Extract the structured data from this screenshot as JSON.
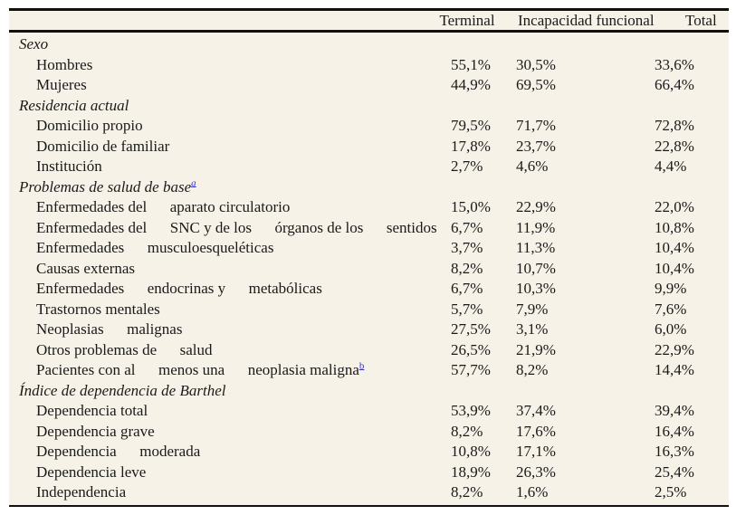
{
  "colors": {
    "table_background": "#f6f2e7",
    "page_background": "#ffffff",
    "text": "#1a1a1a",
    "rule": "#111111",
    "footnote_link": "#3333cc"
  },
  "table": {
    "headers": {
      "terminal": "Terminal",
      "incapacidad": "Incapacidad funcional",
      "total": "Total"
    },
    "rows": [
      {
        "type": "section",
        "label": "Sexo"
      },
      {
        "type": "data",
        "label": "Hombres",
        "terminal": "55,1%",
        "incapacidad": "30,5%",
        "total": "33,6%"
      },
      {
        "type": "data",
        "label": "Mujeres",
        "terminal": "44,9%",
        "incapacidad": "69,5%",
        "total": "66,4%"
      },
      {
        "type": "section",
        "label": "Residencia actual"
      },
      {
        "type": "data",
        "label": "Domicilio propio",
        "terminal": "79,5%",
        "incapacidad": "71,7%",
        "total": "72,8%"
      },
      {
        "type": "data",
        "label": "Domicilio de familiar",
        "terminal": "17,8%",
        "incapacidad": "23,7%",
        "total": "22,8%"
      },
      {
        "type": "data",
        "label": "Institución",
        "terminal": "2,7%",
        "incapacidad": "4,6%",
        "total": "4,4%"
      },
      {
        "type": "section",
        "label": "Problemas de salud de base",
        "sup": "a"
      },
      {
        "type": "data",
        "label": "Enfermedades del      aparato circulatorio",
        "terminal": "15,0%",
        "incapacidad": "22,9%",
        "total": "22,0%"
      },
      {
        "type": "data",
        "label": "Enfermedades del      SNC y de los      órganos de los      sentidos",
        "terminal": "6,7%",
        "incapacidad": "11,9%",
        "total": "10,8%"
      },
      {
        "type": "data",
        "label": "Enfermedades      musculoesqueléticas",
        "terminal": "3,7%",
        "incapacidad": "11,3%",
        "total": "10,4%"
      },
      {
        "type": "data",
        "label": "Causas externas",
        "terminal": "8,2%",
        "incapacidad": "10,7%",
        "total": "10,4%"
      },
      {
        "type": "data",
        "label": "Enfermedades      endocrinas y      metabólicas",
        "terminal": "6,7%",
        "incapacidad": "10,3%",
        "total": "9,9%"
      },
      {
        "type": "data",
        "label": "Trastornos mentales",
        "terminal": "5,7%",
        "incapacidad": "7,9%",
        "total": "7,6%"
      },
      {
        "type": "data",
        "label": "Neoplasias      malignas",
        "terminal": "27,5%",
        "incapacidad": "3,1%",
        "total": "6,0%"
      },
      {
        "type": "data",
        "label": "Otros problemas de      salud",
        "terminal": "26,5%",
        "incapacidad": "21,9%",
        "total": "22,9%"
      },
      {
        "type": "data",
        "label": "Pacientes con al      menos una      neoplasia maligna",
        "sup": "b",
        "terminal": "57,7%",
        "incapacidad": "8,2%",
        "total": "14,4%"
      },
      {
        "type": "section",
        "label": "Índice de dependencia de Barthel"
      },
      {
        "type": "data",
        "label": "Dependencia total",
        "terminal": "53,9%",
        "incapacidad": "37,4%",
        "total": "39,4%"
      },
      {
        "type": "data",
        "label": "Dependencia grave",
        "terminal": "8,2%",
        "incapacidad": "17,6%",
        "total": "16,4%"
      },
      {
        "type": "data",
        "label": "Dependencia      moderada",
        "terminal": "10,8%",
        "incapacidad": "17,1%",
        "total": "16,3%"
      },
      {
        "type": "data",
        "label": "Dependencia leve",
        "terminal": "18,9%",
        "incapacidad": "26,3%",
        "total": "25,4%"
      },
      {
        "type": "data",
        "label": "Independencia",
        "terminal": "8,2%",
        "incapacidad": "1,6%",
        "total": "2,5%"
      }
    ]
  }
}
